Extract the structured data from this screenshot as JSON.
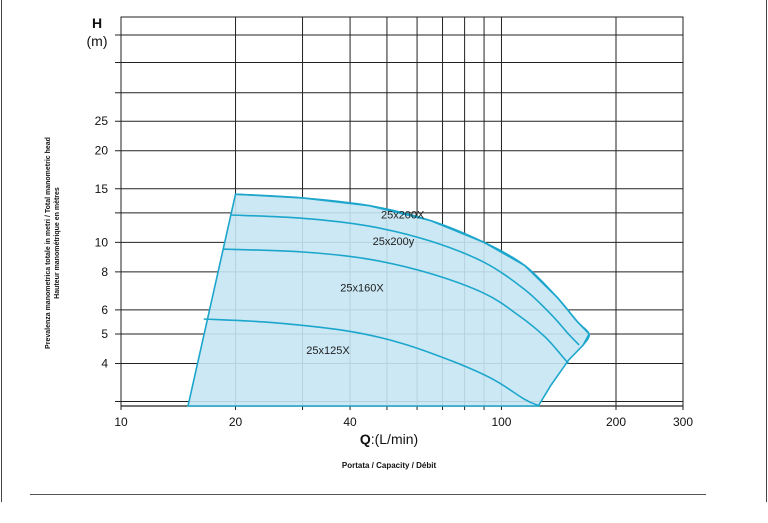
{
  "chart_data": {
    "type": "line",
    "x_scale": "log",
    "y_scale": "log",
    "xlim": [
      10,
      300
    ],
    "ylim": [
      2.9,
      55
    ],
    "x_ticks": [
      10,
      20,
      40,
      100,
      200,
      300
    ],
    "x_tick_labels": [
      "10",
      "20",
      "40",
      "100",
      "200",
      "300"
    ],
    "y_ticks": [
      4,
      5,
      6,
      8,
      10,
      15,
      20,
      25
    ],
    "y_tick_labels": [
      "4",
      "5",
      "6",
      "8",
      "10",
      "15",
      "20",
      "25"
    ],
    "y_title": "H",
    "y_unit": "(m)",
    "x_title_bold": "Q",
    "x_title_rest": ":(L/min)",
    "x_subtitle": "Portata / Capacity / Débit",
    "y_description_line1": "Prevalenza manometrica totale in metri / Total manometric head",
    "y_description_line2": "Hauteur manométrique en mètres",
    "grid": true,
    "fill_color": "#c5e6f3",
    "line_color": "#1da6cc",
    "envelope": [
      {
        "x": 15.0,
        "y": 2.9
      },
      {
        "x": 20.0,
        "y": 14.4
      },
      {
        "x": 30,
        "y": 14.0
      },
      {
        "x": 45,
        "y": 13.2
      },
      {
        "x": 65,
        "y": 11.8
      },
      {
        "x": 90,
        "y": 10.0
      },
      {
        "x": 115,
        "y": 8.4
      },
      {
        "x": 140,
        "y": 6.6
      },
      {
        "x": 158,
        "y": 5.5
      },
      {
        "x": 170,
        "y": 5.0
      },
      {
        "x": 164,
        "y": 4.6
      },
      {
        "x": 150,
        "y": 4.1
      },
      {
        "x": 135,
        "y": 3.4
      },
      {
        "x": 125,
        "y": 2.9
      }
    ],
    "series": [
      {
        "name": "25x200X",
        "points": [
          [
            19.5,
            12.3
          ],
          [
            30,
            12.0
          ],
          [
            45,
            11.3
          ],
          [
            65,
            10.1
          ],
          [
            90,
            8.6
          ],
          [
            115,
            7.0
          ],
          [
            135,
            5.8
          ],
          [
            150,
            5.0
          ],
          [
            160,
            4.6
          ]
        ]
      },
      {
        "name": "25x200y",
        "points": [
          [
            18.5,
            9.5
          ],
          [
            30,
            9.3
          ],
          [
            45,
            8.8
          ],
          [
            65,
            7.9
          ],
          [
            90,
            6.8
          ],
          [
            110,
            5.8
          ],
          [
            130,
            4.9
          ],
          [
            145,
            4.2
          ],
          [
            150,
            4.0
          ]
        ]
      },
      {
        "name": "25x160X",
        "points": []
      },
      {
        "name": "25x125X",
        "points": [
          [
            16.5,
            5.6
          ],
          [
            25,
            5.45
          ],
          [
            40,
            5.1
          ],
          [
            55,
            4.65
          ],
          [
            75,
            4.05
          ],
          [
            95,
            3.55
          ],
          [
            115,
            3.05
          ],
          [
            126,
            2.9
          ]
        ]
      }
    ],
    "curve_labels": [
      {
        "text": "25x200X",
        "x": 55,
        "y": 12.0
      },
      {
        "text": "25x200y",
        "x": 52,
        "y": 9.8
      },
      {
        "text": "25x160X",
        "x": 43,
        "y": 6.9
      },
      {
        "text": "25x125X",
        "x": 35,
        "y": 4.3
      }
    ]
  }
}
